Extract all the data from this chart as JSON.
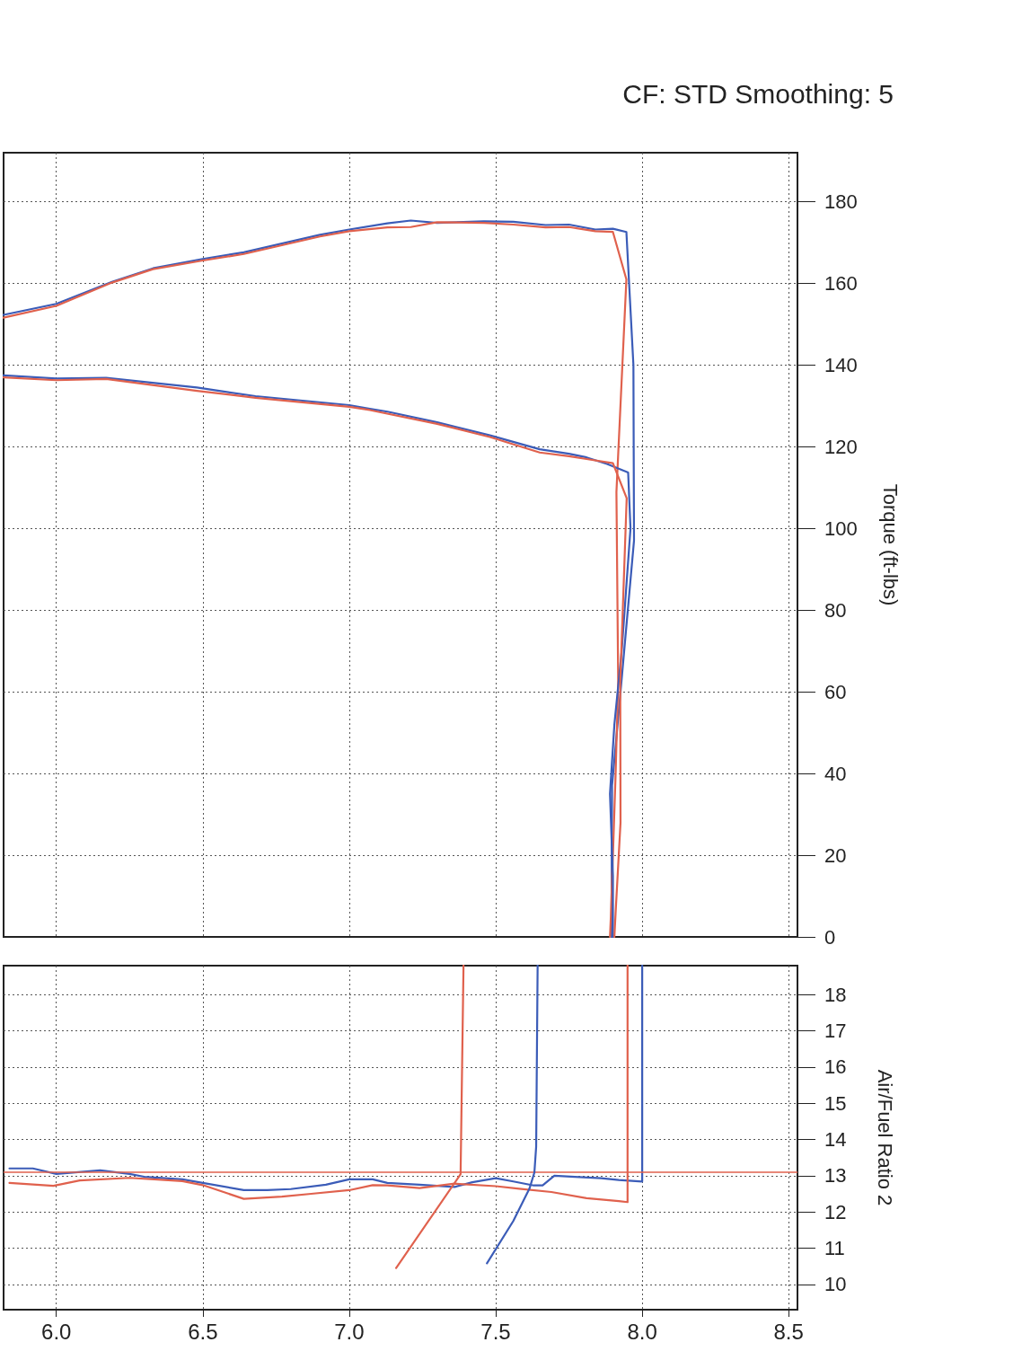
{
  "chart_data": [
    {
      "type": "line",
      "title": "CF: STD Smoothing: 5",
      "ylabel": "Torque (ft-lbs)",
      "xlim": [
        5.82,
        8.53
      ],
      "ylim": [
        0,
        192
      ],
      "xticks": [
        6,
        6.5,
        7,
        7.5,
        8,
        8.5
      ],
      "yticks": [
        0,
        20,
        40,
        60,
        80,
        100,
        120,
        140,
        160,
        180
      ],
      "tick_labels": "y",
      "grid": true,
      "marker": "none",
      "line_style": "solid",
      "series": [
        {
          "color": "#3b5cb8",
          "x": [
            5.82,
            6.0,
            6.19,
            6.33,
            6.5,
            6.64,
            6.9,
            7.0,
            7.13,
            7.21,
            7.3,
            7.46,
            7.56,
            7.67,
            7.75,
            7.84,
            7.9,
            7.946,
            7.97,
            7.972,
            7.926,
            7.897,
            7.895
          ],
          "values": [
            152.3,
            155,
            160.4,
            163.7,
            166,
            167.6,
            171.9,
            173.2,
            174.7,
            175.4,
            174.8,
            175.2,
            175.1,
            174.3,
            174.4,
            173.2,
            173.4,
            172.6,
            140,
            97,
            60,
            37,
            0
          ]
        },
        {
          "color": "#e0614d",
          "x": [
            5.82,
            6.0,
            6.19,
            6.33,
            6.5,
            6.64,
            6.9,
            7.0,
            7.13,
            7.21,
            7.3,
            7.46,
            7.56,
            7.67,
            7.75,
            7.84,
            7.9,
            7.946,
            7.912,
            7.918,
            7.909,
            7.893,
            7.89
          ],
          "values": [
            151.6,
            154.5,
            160.2,
            163.5,
            165.6,
            167.2,
            171.5,
            172.8,
            173.7,
            173.8,
            175,
            174.8,
            174.4,
            173.7,
            173.8,
            172.8,
            172.6,
            161,
            108.9,
            62.3,
            39.4,
            5,
            0
          ]
        },
        {
          "color": "#3b5cb8",
          "x": [
            5.82,
            6.0,
            6.17,
            6.48,
            6.68,
            7.0,
            7.07,
            7.13,
            7.3,
            7.48,
            7.65,
            7.75,
            7.81,
            7.88,
            7.952,
            7.96,
            7.93,
            7.905,
            7.89,
            7.9,
            7.9
          ],
          "values": [
            137.5,
            136.7,
            136.9,
            134.5,
            132.4,
            130.2,
            129.3,
            128.6,
            126,
            122.8,
            119.4,
            118.3,
            117.4,
            115.8,
            113.7,
            100,
            70,
            52,
            35,
            15,
            0
          ]
        },
        {
          "color": "#e0614d",
          "x": [
            5.82,
            6.0,
            6.17,
            6.48,
            6.68,
            7.0,
            7.07,
            7.3,
            7.48,
            7.65,
            7.75,
            7.81,
            7.9,
            7.947,
            7.925,
            7.926,
            7.91,
            7.905
          ],
          "values": [
            137,
            136.3,
            136.6,
            133.7,
            132,
            129.8,
            129,
            125.6,
            122.4,
            118.6,
            117.7,
            117,
            116,
            107.4,
            62.3,
            28,
            7,
            0
          ]
        }
      ]
    },
    {
      "type": "line",
      "ylabel": "Air/Fuel Ratio 2",
      "xlim": [
        5.82,
        8.53
      ],
      "ylim": [
        9.3,
        18.8
      ],
      "xticks": [
        {
          "value": 6,
          "label": "6.0"
        },
        {
          "value": 6.5,
          "label": "6.5"
        },
        {
          "value": 7,
          "label": "7.0"
        },
        {
          "value": 7.5,
          "label": "7.5"
        },
        {
          "value": 8,
          "label": "8.0"
        },
        {
          "value": 8.5,
          "label": "8.5"
        }
      ],
      "yticks": [
        10,
        11,
        12,
        13,
        14,
        15,
        16,
        17,
        18
      ],
      "grid": true,
      "marker": "none",
      "line_style": "solid",
      "ref_lines": [
        {
          "axis": "y",
          "value": 13.1,
          "color": "#e0614d"
        }
      ],
      "series": [
        {
          "color": "#3b5cb8",
          "x": [
            5.84,
            5.92,
            6.0,
            6.15,
            6.25,
            6.3,
            6.43,
            6.5,
            6.64,
            6.72,
            6.8,
            6.92,
            7.0,
            7.08,
            7.13,
            7.24,
            7.36,
            7.42,
            7.5,
            7.56,
            7.63,
            7.66,
            7.7,
            7.77,
            7.86,
            7.92,
            8.0,
            8.0
          ],
          "values": [
            13.2,
            13.2,
            13.05,
            13.15,
            13.05,
            12.97,
            12.9,
            12.8,
            12.6,
            12.6,
            12.63,
            12.75,
            12.9,
            12.9,
            12.8,
            12.75,
            12.69,
            12.82,
            12.93,
            12.84,
            12.73,
            12.73,
            13.0,
            12.97,
            12.93,
            12.88,
            12.84,
            18.8
          ]
        },
        {
          "color": "#e0614d",
          "x": [
            5.84,
            5.99,
            6.08,
            6.25,
            6.43,
            6.5,
            6.64,
            6.77,
            6.87,
            7.0,
            7.08,
            7.13,
            7.24,
            7.36,
            7.5,
            7.58,
            7.69,
            7.81,
            7.92,
            7.95,
            7.95
          ],
          "values": [
            12.8,
            12.72,
            12.87,
            12.94,
            12.85,
            12.74,
            12.36,
            12.42,
            12.5,
            12.6,
            12.74,
            12.73,
            12.66,
            12.78,
            12.71,
            12.64,
            12.55,
            12.38,
            12.3,
            12.27,
            18.8
          ]
        },
        {
          "color": "#e0614d",
          "x": [
            7.16,
            7.38,
            7.39
          ],
          "values": [
            10.45,
            13.04,
            18.8
          ]
        },
        {
          "color": "#3b5cb8",
          "x": [
            7.47,
            7.56,
            7.615,
            7.632,
            7.638,
            7.643
          ],
          "values": [
            10.58,
            11.75,
            12.64,
            13.09,
            13.8,
            18.8
          ]
        }
      ]
    }
  ]
}
